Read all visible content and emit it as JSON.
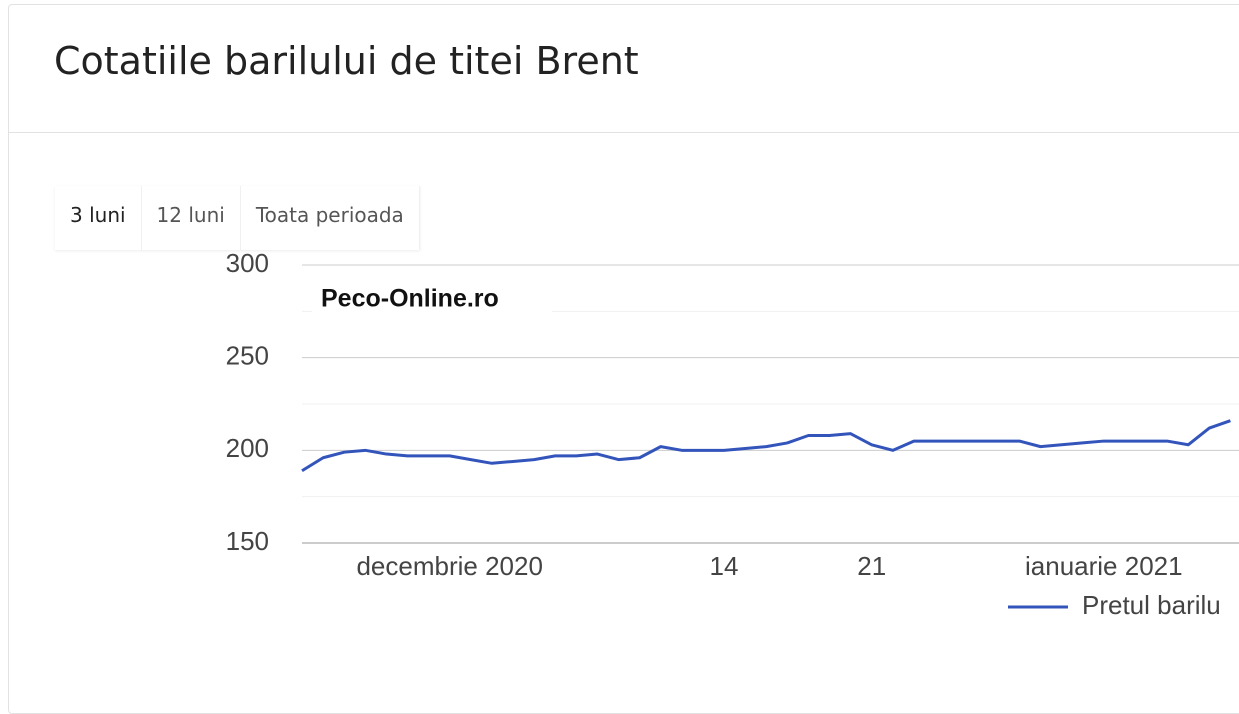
{
  "header": {
    "title": "Cotatiile barilului de titei Brent"
  },
  "tabs": [
    "3 luni",
    "12 luni",
    "Toata perioada"
  ],
  "chart_data": {
    "type": "line",
    "annotation": "Peco-Online.ro",
    "categories": [
      null,
      null,
      null,
      null,
      null,
      null,
      null,
      "decembrie 2020",
      null,
      null,
      null,
      null,
      null,
      null,
      null,
      null,
      null,
      null,
      null,
      null,
      "14",
      null,
      null,
      null,
      null,
      null,
      null,
      "21",
      null,
      null,
      null,
      null,
      null,
      null,
      null,
      null,
      null,
      null,
      "ianuarie 2021",
      null,
      null,
      null,
      null,
      null,
      null
    ],
    "series": [
      {
        "name": "Pretul barilu",
        "color": "#3355bb",
        "values": [
          189,
          196,
          199,
          200,
          198,
          197,
          197,
          197,
          195,
          193,
          194,
          195,
          197,
          197,
          198,
          195,
          196,
          202,
          200,
          200,
          200,
          201,
          202,
          204,
          208,
          208,
          209,
          203,
          200,
          205,
          205,
          205,
          205,
          205,
          205,
          202,
          203,
          204,
          205,
          205,
          205,
          205,
          203,
          212,
          216
        ]
      }
    ],
    "ylim": [
      150,
      300
    ],
    "yticks": [
      150,
      200,
      250,
      300
    ],
    "minor_yticks": [
      175,
      225,
      275
    ],
    "grid": true,
    "legend": "bottom"
  }
}
